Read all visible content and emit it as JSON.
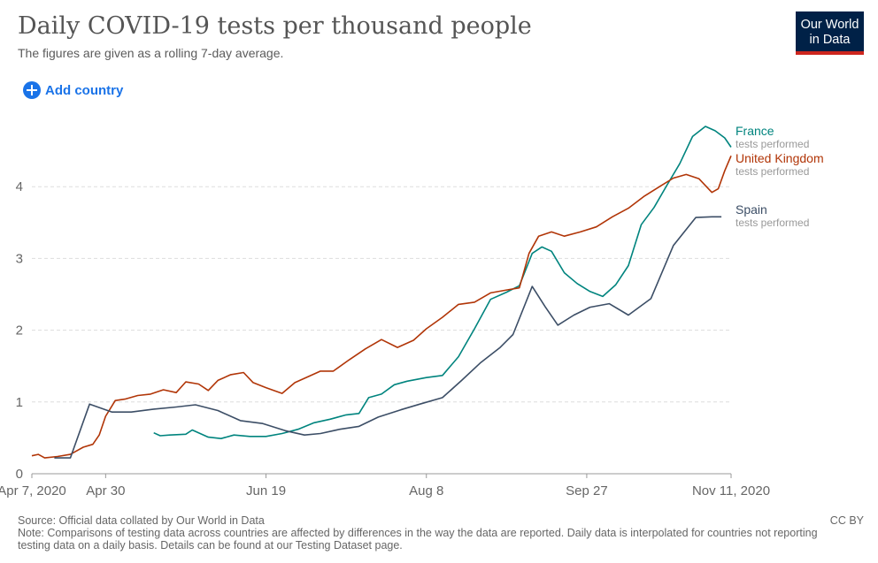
{
  "header": {
    "title": "Daily COVID-19 tests per thousand people",
    "subtitle": "The figures are given as a rolling 7-day average."
  },
  "logo": {
    "line1": "Our World",
    "line2": "in Data"
  },
  "controls": {
    "add_country_label": "Add country"
  },
  "footer": {
    "source": "Source: Official data collated by Our World in Data",
    "note": "Note: Comparisons of testing data across countries are affected by differences in the way the data are reported. Daily data is interpolated for countries not reporting testing data on a daily basis. Details can be found at our Testing Dataset page.",
    "license": "CC BY"
  },
  "chart_data": {
    "type": "line",
    "title": "Daily COVID-19 tests per thousand people",
    "ylim": [
      0,
      5
    ],
    "xlim": [
      "2020-04-07",
      "2020-11-11"
    ],
    "yticks": [
      0,
      1,
      2,
      3,
      4
    ],
    "xtick_labels": [
      {
        "date": "2020-04-07",
        "label": "Apr 7, 2020"
      },
      {
        "date": "2020-04-30",
        "label": "Apr 30"
      },
      {
        "date": "2020-06-19",
        "label": "Jun 19"
      },
      {
        "date": "2020-08-08",
        "label": "Aug 8"
      },
      {
        "date": "2020-09-27",
        "label": "Sep 27"
      },
      {
        "date": "2020-11-11",
        "label": "Nov 11, 2020"
      }
    ],
    "grid": "horizontal dashed",
    "legend": "right, at line ends",
    "series": [
      {
        "name": "France",
        "sublabel": "tests performed",
        "color": "#00847e",
        "points": [
          [
            "2020-05-15",
            0.57
          ],
          [
            "2020-05-17",
            0.53
          ],
          [
            "2020-05-20",
            0.54
          ],
          [
            "2020-05-25",
            0.55
          ],
          [
            "2020-05-27",
            0.61
          ],
          [
            "2020-06-01",
            0.51
          ],
          [
            "2020-06-05",
            0.49
          ],
          [
            "2020-06-09",
            0.54
          ],
          [
            "2020-06-14",
            0.52
          ],
          [
            "2020-06-19",
            0.52
          ],
          [
            "2020-06-24",
            0.56
          ],
          [
            "2020-06-29",
            0.62
          ],
          [
            "2020-07-04",
            0.71
          ],
          [
            "2020-07-09",
            0.76
          ],
          [
            "2020-07-14",
            0.82
          ],
          [
            "2020-07-18",
            0.84
          ],
          [
            "2020-07-21",
            1.06
          ],
          [
            "2020-07-25",
            1.11
          ],
          [
            "2020-07-29",
            1.24
          ],
          [
            "2020-08-02",
            1.29
          ],
          [
            "2020-08-08",
            1.34
          ],
          [
            "2020-08-13",
            1.37
          ],
          [
            "2020-08-18",
            1.63
          ],
          [
            "2020-08-23",
            2.02
          ],
          [
            "2020-08-28",
            2.43
          ],
          [
            "2020-09-02",
            2.53
          ],
          [
            "2020-09-06",
            2.62
          ],
          [
            "2020-09-10",
            3.07
          ],
          [
            "2020-09-13",
            3.16
          ],
          [
            "2020-09-16",
            3.1
          ],
          [
            "2020-09-20",
            2.8
          ],
          [
            "2020-09-24",
            2.65
          ],
          [
            "2020-09-28",
            2.54
          ],
          [
            "2020-10-02",
            2.47
          ],
          [
            "2020-10-06",
            2.63
          ],
          [
            "2020-10-10",
            2.9
          ],
          [
            "2020-10-14",
            3.47
          ],
          [
            "2020-10-18",
            3.71
          ],
          [
            "2020-10-22",
            4.02
          ],
          [
            "2020-10-26",
            4.32
          ],
          [
            "2020-10-30",
            4.7
          ],
          [
            "2020-11-03",
            4.84
          ],
          [
            "2020-11-06",
            4.78
          ],
          [
            "2020-11-09",
            4.68
          ],
          [
            "2020-11-11",
            4.55
          ]
        ]
      },
      {
        "name": "United Kingdom",
        "sublabel": "tests performed",
        "color": "#b13507",
        "points": [
          [
            "2020-04-07",
            0.25
          ],
          [
            "2020-04-09",
            0.27
          ],
          [
            "2020-04-11",
            0.22
          ],
          [
            "2020-04-15",
            0.24
          ],
          [
            "2020-04-19",
            0.27
          ],
          [
            "2020-04-23",
            0.37
          ],
          [
            "2020-04-26",
            0.41
          ],
          [
            "2020-04-28",
            0.54
          ],
          [
            "2020-04-30",
            0.8
          ],
          [
            "2020-05-03",
            1.02
          ],
          [
            "2020-05-06",
            1.04
          ],
          [
            "2020-05-10",
            1.09
          ],
          [
            "2020-05-14",
            1.11
          ],
          [
            "2020-05-18",
            1.17
          ],
          [
            "2020-05-22",
            1.13
          ],
          [
            "2020-05-25",
            1.28
          ],
          [
            "2020-05-29",
            1.25
          ],
          [
            "2020-06-01",
            1.16
          ],
          [
            "2020-06-04",
            1.3
          ],
          [
            "2020-06-08",
            1.38
          ],
          [
            "2020-06-12",
            1.41
          ],
          [
            "2020-06-15",
            1.27
          ],
          [
            "2020-06-19",
            1.2
          ],
          [
            "2020-06-24",
            1.12
          ],
          [
            "2020-06-28",
            1.27
          ],
          [
            "2020-07-02",
            1.35
          ],
          [
            "2020-07-06",
            1.43
          ],
          [
            "2020-07-10",
            1.43
          ],
          [
            "2020-07-15",
            1.59
          ],
          [
            "2020-07-20",
            1.74
          ],
          [
            "2020-07-25",
            1.87
          ],
          [
            "2020-07-30",
            1.76
          ],
          [
            "2020-08-04",
            1.86
          ],
          [
            "2020-08-08",
            2.02
          ],
          [
            "2020-08-13",
            2.18
          ],
          [
            "2020-08-18",
            2.36
          ],
          [
            "2020-08-23",
            2.39
          ],
          [
            "2020-08-28",
            2.52
          ],
          [
            "2020-09-02",
            2.56
          ],
          [
            "2020-09-06",
            2.59
          ],
          [
            "2020-09-09",
            3.07
          ],
          [
            "2020-09-12",
            3.31
          ],
          [
            "2020-09-16",
            3.37
          ],
          [
            "2020-09-20",
            3.31
          ],
          [
            "2020-09-25",
            3.37
          ],
          [
            "2020-09-30",
            3.44
          ],
          [
            "2020-10-05",
            3.58
          ],
          [
            "2020-10-10",
            3.7
          ],
          [
            "2020-10-15",
            3.87
          ],
          [
            "2020-10-20",
            4.01
          ],
          [
            "2020-10-24",
            4.12
          ],
          [
            "2020-10-28",
            4.17
          ],
          [
            "2020-11-01",
            4.11
          ],
          [
            "2020-11-05",
            3.92
          ],
          [
            "2020-11-07",
            3.97
          ],
          [
            "2020-11-09",
            4.22
          ],
          [
            "2020-11-11",
            4.43
          ]
        ]
      },
      {
        "name": "Spain",
        "sublabel": "tests performed",
        "color": "#3c4e66",
        "points": [
          [
            "2020-04-14",
            0.22
          ],
          [
            "2020-04-19",
            0.22
          ],
          [
            "2020-04-25",
            0.97
          ],
          [
            "2020-05-02",
            0.86
          ],
          [
            "2020-05-08",
            0.86
          ],
          [
            "2020-05-15",
            0.9
          ],
          [
            "2020-05-22",
            0.93
          ],
          [
            "2020-05-28",
            0.96
          ],
          [
            "2020-06-04",
            0.88
          ],
          [
            "2020-06-11",
            0.74
          ],
          [
            "2020-06-18",
            0.7
          ],
          [
            "2020-06-25",
            0.6
          ],
          [
            "2020-07-01",
            0.54
          ],
          [
            "2020-07-06",
            0.56
          ],
          [
            "2020-07-12",
            0.62
          ],
          [
            "2020-07-18",
            0.66
          ],
          [
            "2020-07-24",
            0.79
          ],
          [
            "2020-07-31",
            0.89
          ],
          [
            "2020-08-06",
            0.97
          ],
          [
            "2020-08-13",
            1.06
          ],
          [
            "2020-08-19",
            1.3
          ],
          [
            "2020-08-25",
            1.55
          ],
          [
            "2020-08-31",
            1.76
          ],
          [
            "2020-09-04",
            1.94
          ],
          [
            "2020-09-10",
            2.61
          ],
          [
            "2020-09-14",
            2.33
          ],
          [
            "2020-09-18",
            2.07
          ],
          [
            "2020-09-23",
            2.21
          ],
          [
            "2020-09-28",
            2.32
          ],
          [
            "2020-10-04",
            2.37
          ],
          [
            "2020-10-10",
            2.21
          ],
          [
            "2020-10-17",
            2.44
          ],
          [
            "2020-10-24",
            3.18
          ],
          [
            "2020-10-31",
            3.57
          ],
          [
            "2020-11-05",
            3.58
          ],
          [
            "2020-11-08",
            3.58
          ]
        ]
      }
    ]
  }
}
